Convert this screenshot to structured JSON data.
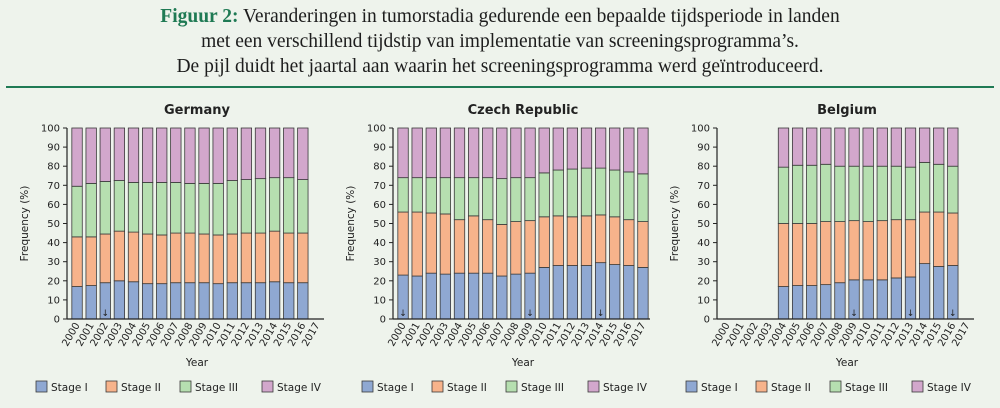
{
  "caption": {
    "label": "Figuur 2:",
    "line1": "Veranderingen in tumorstadia gedurende een bepaalde tijdsperiode in landen",
    "line2": "met een verschillend tijdstip van implementatie van screeningsprogramma’s.",
    "line3": "De pijl duidt het jaartal aan waarin het screeningsprogramma werd geïntroduceerd."
  },
  "colors": {
    "stage1": "#8fa8d2",
    "stage2": "#f7b38b",
    "stage3": "#b6dfb0",
    "stage4": "#d2a7cc",
    "outline": "#3a3a3a",
    "rule": "#1f7a54"
  },
  "arrow_glyph": "↓",
  "chart_data": [
    {
      "type": "bar",
      "stacked": true,
      "title": "Germany",
      "xlabel": "Year",
      "ylabel": "Frequency (%)",
      "ylim": [
        0,
        100
      ],
      "yticks": [
        0,
        10,
        20,
        30,
        40,
        50,
        60,
        70,
        80,
        90,
        100
      ],
      "categories": [
        "2000",
        "2001",
        "2002",
        "2003",
        "2004",
        "2005",
        "2006",
        "2007",
        "2008",
        "2009",
        "2010",
        "2011",
        "2012",
        "2013",
        "2014",
        "2015",
        "2016",
        "2017"
      ],
      "series": [
        {
          "name": "Stage I",
          "values": [
            17,
            17.5,
            19,
            20,
            19.5,
            18.5,
            18.5,
            19,
            19,
            19,
            18.5,
            19,
            19,
            19,
            19.5,
            19,
            19,
            null
          ]
        },
        {
          "name": "Stage II",
          "values": [
            26,
            25.5,
            25.5,
            26,
            26,
            26,
            25.5,
            26,
            26,
            25.5,
            25.5,
            25.5,
            26,
            26,
            26.5,
            26,
            26,
            null
          ]
        },
        {
          "name": "Stage III",
          "values": [
            26.5,
            28,
            27.5,
            26.5,
            26,
            27,
            27.5,
            26.5,
            26,
            26.5,
            27,
            28,
            28,
            28.5,
            28,
            29,
            28,
            null
          ]
        },
        {
          "name": "Stage IV",
          "values": [
            30.5,
            29,
            28,
            27.5,
            28.5,
            28.5,
            28.5,
            28.5,
            29,
            29,
            29,
            27.5,
            27,
            26.5,
            26,
            26,
            27,
            null
          ]
        }
      ],
      "arrows": [
        "2002"
      ],
      "legend": "bottom"
    },
    {
      "type": "bar",
      "stacked": true,
      "title": "Czech Republic",
      "xlabel": "Year",
      "ylabel": "Frequency (%)",
      "ylim": [
        0,
        100
      ],
      "yticks": [
        0,
        10,
        20,
        30,
        40,
        50,
        60,
        70,
        80,
        90,
        100
      ],
      "categories": [
        "2000",
        "2001",
        "2002",
        "2003",
        "2004",
        "2005",
        "2006",
        "2007",
        "2008",
        "2009",
        "2010",
        "2011",
        "2012",
        "2013",
        "2014",
        "2015",
        "2016",
        "2017"
      ],
      "series": [
        {
          "name": "Stage I",
          "values": [
            23,
            22.5,
            24,
            23.5,
            24,
            24,
            24,
            22.5,
            23.5,
            24,
            27,
            28,
            28,
            28,
            29.5,
            28.5,
            28,
            27
          ]
        },
        {
          "name": "Stage II",
          "values": [
            33,
            33.5,
            31.5,
            31.5,
            28,
            30,
            28,
            27,
            27.5,
            27.5,
            26.5,
            26,
            25.5,
            26,
            25,
            25,
            24,
            24
          ]
        },
        {
          "name": "Stage III",
          "values": [
            18,
            18,
            18.5,
            19,
            22,
            20,
            22,
            24,
            23,
            22.5,
            23,
            24,
            25,
            25,
            24.5,
            24.5,
            25,
            25
          ]
        },
        {
          "name": "Stage IV",
          "values": [
            26,
            26,
            26,
            26,
            26,
            26,
            26,
            26.5,
            26,
            26,
            23.5,
            22,
            21.5,
            21,
            21,
            22,
            23,
            24
          ]
        }
      ],
      "arrows": [
        "2000",
        "2009",
        "2014"
      ],
      "legend": "bottom"
    },
    {
      "type": "bar",
      "stacked": true,
      "title": "Belgium",
      "xlabel": "Year",
      "ylabel": "Frequency (%)",
      "ylim": [
        0,
        100
      ],
      "yticks": [
        0,
        10,
        20,
        30,
        40,
        50,
        60,
        70,
        80,
        90,
        100
      ],
      "categories": [
        "2000",
        "2001",
        "2002",
        "2003",
        "2004",
        "2005",
        "2006",
        "2007",
        "2008",
        "2009",
        "2010",
        "2011",
        "2012",
        "2013",
        "2014",
        "2015",
        "2016",
        "2017"
      ],
      "series": [
        {
          "name": "Stage I",
          "values": [
            null,
            null,
            null,
            null,
            17,
            17.5,
            17.5,
            18,
            19,
            20.5,
            20.5,
            20.5,
            21.5,
            22,
            29,
            27.5,
            28,
            null
          ]
        },
        {
          "name": "Stage II",
          "values": [
            null,
            null,
            null,
            null,
            33,
            32.5,
            32.5,
            33,
            32,
            31,
            30.5,
            31,
            30.5,
            30,
            27,
            28.5,
            27.5,
            null
          ]
        },
        {
          "name": "Stage III",
          "values": [
            null,
            null,
            null,
            null,
            29.5,
            30.5,
            30.5,
            30,
            29,
            28.5,
            29,
            28.5,
            28,
            27.5,
            26,
            25,
            24.5,
            null
          ]
        },
        {
          "name": "Stage IV",
          "values": [
            null,
            null,
            null,
            null,
            20.5,
            19.5,
            19.5,
            19,
            20,
            20,
            20,
            20,
            20,
            20.5,
            18,
            19,
            20,
            null
          ]
        }
      ],
      "arrows": [
        "2009",
        "2013",
        "2016"
      ],
      "legend": "bottom"
    }
  ]
}
